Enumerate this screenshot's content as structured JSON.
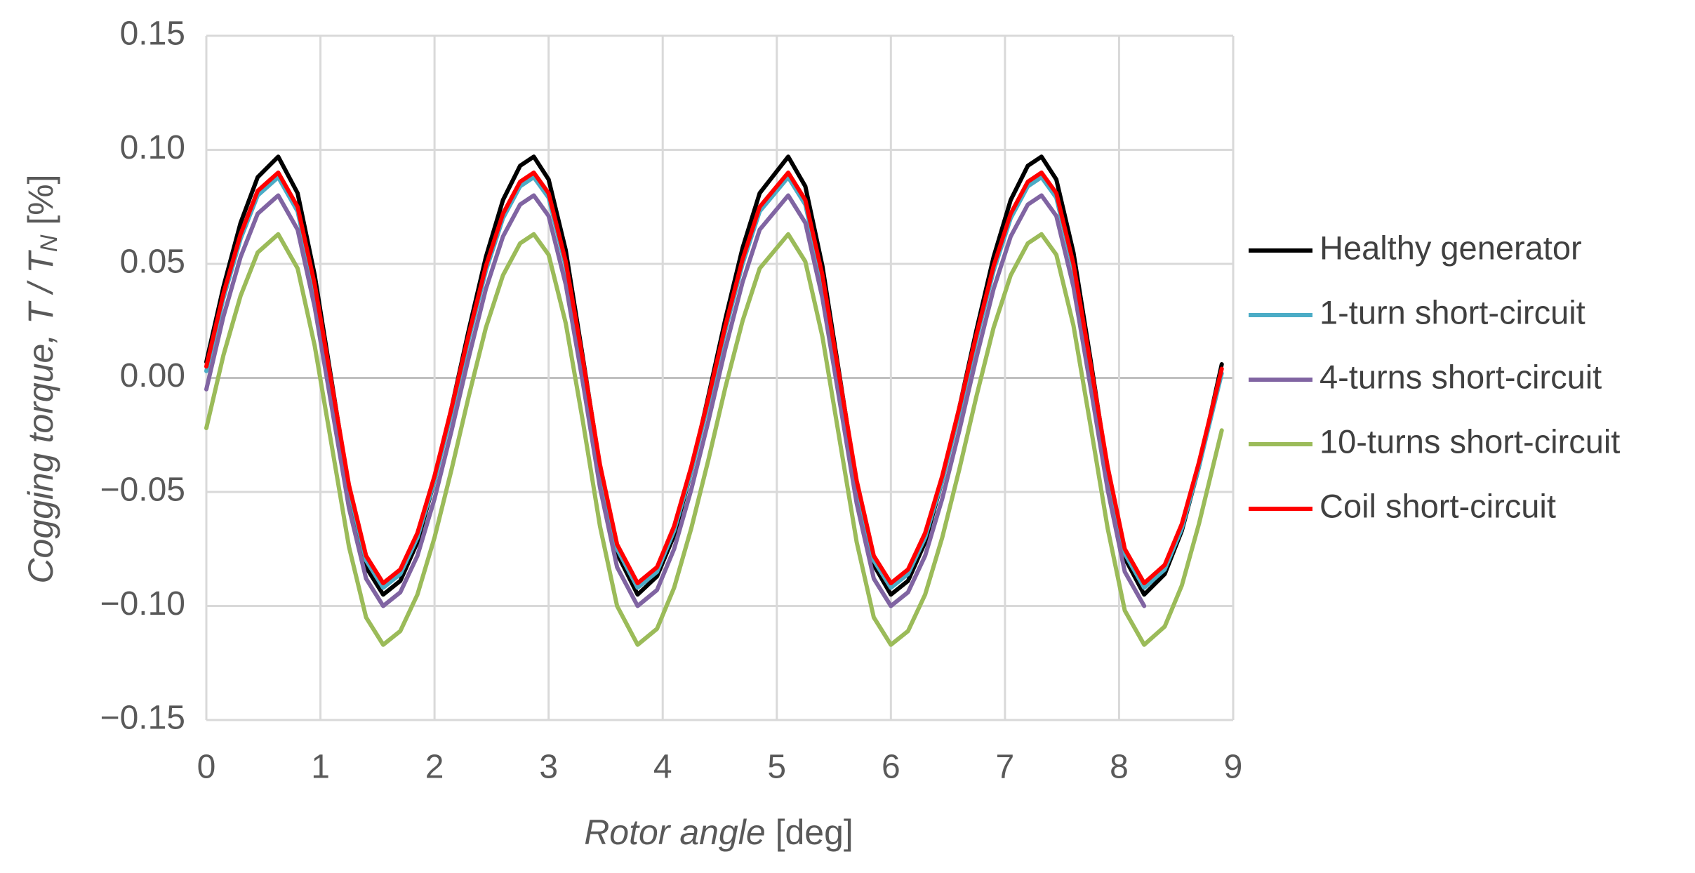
{
  "chart_data": {
    "type": "line",
    "xlabel": {
      "italic": "Rotor angle",
      "rest": " [deg]"
    },
    "ylabel": {
      "italic": "Cogging torque,  T / T",
      "sub": "N",
      "rest": " [%]"
    },
    "x": [
      0,
      0.15,
      0.3,
      0.45,
      0.63,
      0.8,
      0.95,
      1.1,
      1.25,
      1.4,
      1.55,
      1.7,
      1.85,
      2.0,
      2.15,
      2.3,
      2.45,
      2.6,
      2.75,
      2.87,
      3.0,
      3.15,
      3.3,
      3.45,
      3.6,
      3.78,
      3.95,
      4.1,
      4.25,
      4.4,
      4.55,
      4.7,
      4.85,
      5.1,
      5.25,
      5.4,
      5.55,
      5.7,
      5.85,
      6.0,
      6.15,
      6.3,
      6.45,
      6.6,
      6.75,
      6.9,
      7.05,
      7.2,
      7.32,
      7.45,
      7.6,
      7.75,
      7.9,
      8.05,
      8.22,
      8.4,
      8.55,
      8.7,
      8.9
    ],
    "series": [
      {
        "name": "Healthy generator",
        "color": "#000000",
        "values": [
          0.007,
          0.04,
          0.068,
          0.088,
          0.097,
          0.081,
          0.045,
          -0.002,
          -0.049,
          -0.083,
          -0.095,
          -0.089,
          -0.072,
          -0.045,
          -0.013,
          0.021,
          0.053,
          0.078,
          0.093,
          0.097,
          0.087,
          0.056,
          0.009,
          -0.039,
          -0.077,
          -0.095,
          -0.087,
          -0.069,
          -0.041,
          -0.008,
          0.026,
          0.057,
          0.081,
          0.097,
          0.084,
          0.049,
          0.001,
          -0.047,
          -0.082,
          -0.095,
          -0.089,
          -0.072,
          -0.045,
          -0.013,
          0.021,
          0.053,
          0.078,
          0.093,
          0.097,
          0.087,
          0.055,
          0.008,
          -0.041,
          -0.079,
          -0.095,
          -0.086,
          -0.067,
          -0.039,
          0.006
        ]
      },
      {
        "name": "1-turn short-circuit",
        "color": "#4bacc6",
        "values": [
          0.003,
          0.035,
          0.061,
          0.08,
          0.088,
          0.073,
          0.039,
          -0.005,
          -0.049,
          -0.08,
          -0.092,
          -0.086,
          -0.07,
          -0.045,
          -0.015,
          0.017,
          0.047,
          0.07,
          0.084,
          0.088,
          0.079,
          0.049,
          0.006,
          -0.04,
          -0.075,
          -0.092,
          -0.085,
          -0.067,
          -0.041,
          -0.011,
          0.021,
          0.05,
          0.073,
          0.088,
          0.076,
          0.043,
          -0.002,
          -0.047,
          -0.08,
          -0.092,
          -0.086,
          -0.07,
          -0.045,
          -0.015,
          0.017,
          0.047,
          0.07,
          0.084,
          0.088,
          0.079,
          0.048,
          0.004,
          -0.041,
          -0.077,
          -0.092,
          -0.084,
          -0.066,
          -0.039,
          0.002
        ]
      },
      {
        "name": "4-turns short-circuit",
        "color": "#8064a2",
        "values": [
          -0.005,
          0.027,
          0.053,
          0.072,
          0.08,
          0.065,
          0.031,
          -0.013,
          -0.057,
          -0.088,
          -0.1,
          -0.094,
          -0.078,
          -0.053,
          -0.023,
          0.009,
          0.039,
          0.062,
          0.076,
          0.08,
          0.071,
          0.041,
          -0.002,
          -0.048,
          -0.083,
          -0.1,
          -0.093,
          -0.075,
          -0.049,
          -0.019,
          0.013,
          0.042,
          0.065,
          0.08,
          0.068,
          0.035,
          -0.01,
          -0.055,
          -0.088,
          -0.1,
          -0.094,
          -0.078,
          -0.053,
          -0.023,
          0.009,
          0.039,
          0.062,
          0.076,
          0.08,
          0.071,
          0.04,
          -0.004,
          -0.049,
          -0.085,
          -0.1,
          null,
          null,
          null,
          null
        ]
      },
      {
        "name": "10-turns short-circuit",
        "color": "#9bbb59",
        "values": [
          -0.022,
          0.01,
          0.036,
          0.055,
          0.063,
          0.048,
          0.014,
          -0.03,
          -0.074,
          -0.105,
          -0.117,
          -0.111,
          -0.095,
          -0.07,
          -0.04,
          -0.008,
          0.022,
          0.045,
          0.059,
          0.063,
          0.054,
          0.024,
          -0.019,
          -0.065,
          -0.1,
          -0.117,
          -0.11,
          -0.092,
          -0.066,
          -0.036,
          -0.004,
          0.025,
          0.048,
          0.063,
          0.051,
          0.018,
          -0.027,
          -0.072,
          -0.105,
          -0.117,
          -0.111,
          -0.095,
          -0.07,
          -0.04,
          -0.008,
          0.022,
          0.045,
          0.059,
          0.063,
          0.054,
          0.023,
          -0.021,
          -0.066,
          -0.102,
          -0.117,
          -0.109,
          -0.091,
          -0.064,
          -0.023
        ]
      },
      {
        "name": "Coil short-circuit",
        "color": "#ff0000",
        "values": [
          0.005,
          0.037,
          0.063,
          0.082,
          0.09,
          0.075,
          0.041,
          -0.003,
          -0.047,
          -0.078,
          -0.09,
          -0.084,
          -0.068,
          -0.043,
          -0.013,
          0.019,
          0.049,
          0.072,
          0.086,
          0.09,
          0.081,
          0.051,
          0.008,
          -0.038,
          -0.073,
          -0.09,
          -0.083,
          -0.065,
          -0.039,
          -0.009,
          0.023,
          0.052,
          0.075,
          0.09,
          0.078,
          0.045,
          0,
          -0.045,
          -0.078,
          -0.09,
          -0.084,
          -0.068,
          -0.043,
          -0.013,
          0.019,
          0.049,
          0.072,
          0.086,
          0.09,
          0.081,
          0.05,
          0.006,
          -0.039,
          -0.075,
          -0.09,
          -0.082,
          -0.064,
          -0.037,
          0.004
        ]
      }
    ],
    "xlim": [
      0,
      9
    ],
    "xticks": [
      0,
      1,
      2,
      3,
      4,
      5,
      6,
      7,
      8,
      9
    ],
    "ylim": [
      -0.15,
      0.15
    ],
    "yticks": [
      {
        "value": -0.15,
        "label": "−0.15"
      },
      {
        "value": -0.1,
        "label": "−0.10"
      },
      {
        "value": -0.05,
        "label": "−0.05"
      },
      {
        "value": 0,
        "label": "0.00"
      },
      0.05,
      {
        "value": 0.1,
        "label": "0.10"
      },
      0.15
    ],
    "grid": true,
    "legend": "right"
  }
}
